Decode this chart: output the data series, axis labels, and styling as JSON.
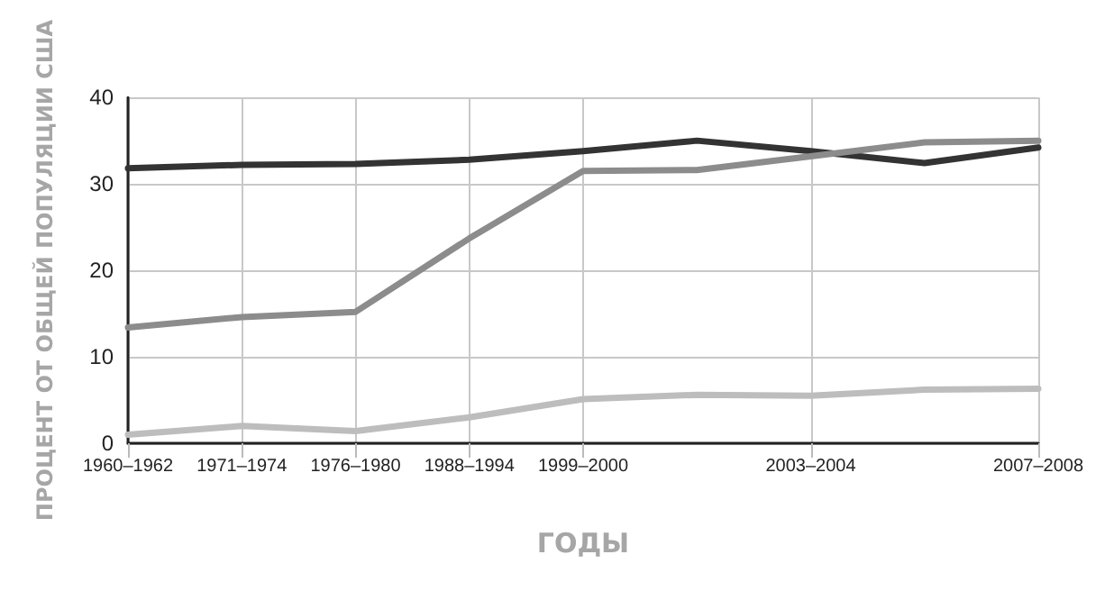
{
  "chart_data": {
    "type": "line",
    "xlabel": "ГОДЫ",
    "ylabel": "ПРОЦЕНТ ОТ ОБЩЕЙ ПОПУЛЯЦИИ США",
    "categories": [
      "1960–1962",
      "1971–1974",
      "1976–1980",
      "1988–1994",
      "1999–2000",
      null,
      "2003–2004",
      null,
      "2007–2008"
    ],
    "ylim": [
      0,
      40
    ],
    "yticks": [
      0,
      10,
      20,
      30,
      40
    ],
    "grid": true,
    "marker": "none",
    "line_style": "solid",
    "series": [
      {
        "color": "#333333",
        "values": [
          31.8,
          32.2,
          32.3,
          32.8,
          33.8,
          35.0,
          33.8,
          32.4,
          34.2
        ]
      },
      {
        "color": "#8c8c8c",
        "values": [
          13.4,
          14.6,
          15.2,
          23.7,
          31.5,
          31.6,
          33.2,
          34.8,
          35.0
        ]
      },
      {
        "color": "#bdbdbd",
        "values": [
          1.0,
          2.0,
          1.4,
          3.0,
          5.1,
          5.6,
          5.5,
          6.2,
          6.3
        ]
      }
    ]
  }
}
